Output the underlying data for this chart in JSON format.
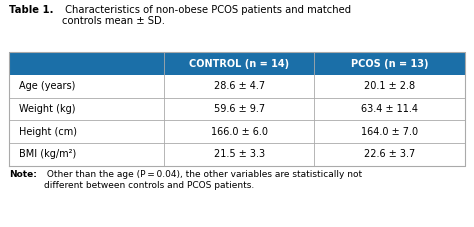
{
  "title_bold": "Table 1.",
  "title_normal": " Characteristics of non-obese PCOS patients and matched\ncontrols mean ± SD.",
  "header": [
    "",
    "CONTROL (n = 14)",
    "PCOS (n = 13)"
  ],
  "rows": [
    [
      "Age (years)",
      "28.6 ± 4.7",
      "20.1 ± 2.8"
    ],
    [
      "Weight (kg)",
      "59.6 ± 9.7",
      "63.4 ± 11.4"
    ],
    [
      "Height (cm)",
      "166.0 ± 6.0",
      "164.0 ± 7.0"
    ],
    [
      "BMI (kg/m²)",
      "21.5 ± 3.3",
      "22.6 ± 3.7"
    ]
  ],
  "note_bold": "Note:",
  "note_normal": " Other than the age (P = 0.04), the other variables are statistically not\ndifferent between controls and PCOS patients.",
  "header_bg": "#1B6FA8",
  "header_fg": "#FFFFFF",
  "border_color": "#AAAAAA",
  "col_splits": [
    0.0,
    0.34,
    0.67,
    1.0
  ]
}
